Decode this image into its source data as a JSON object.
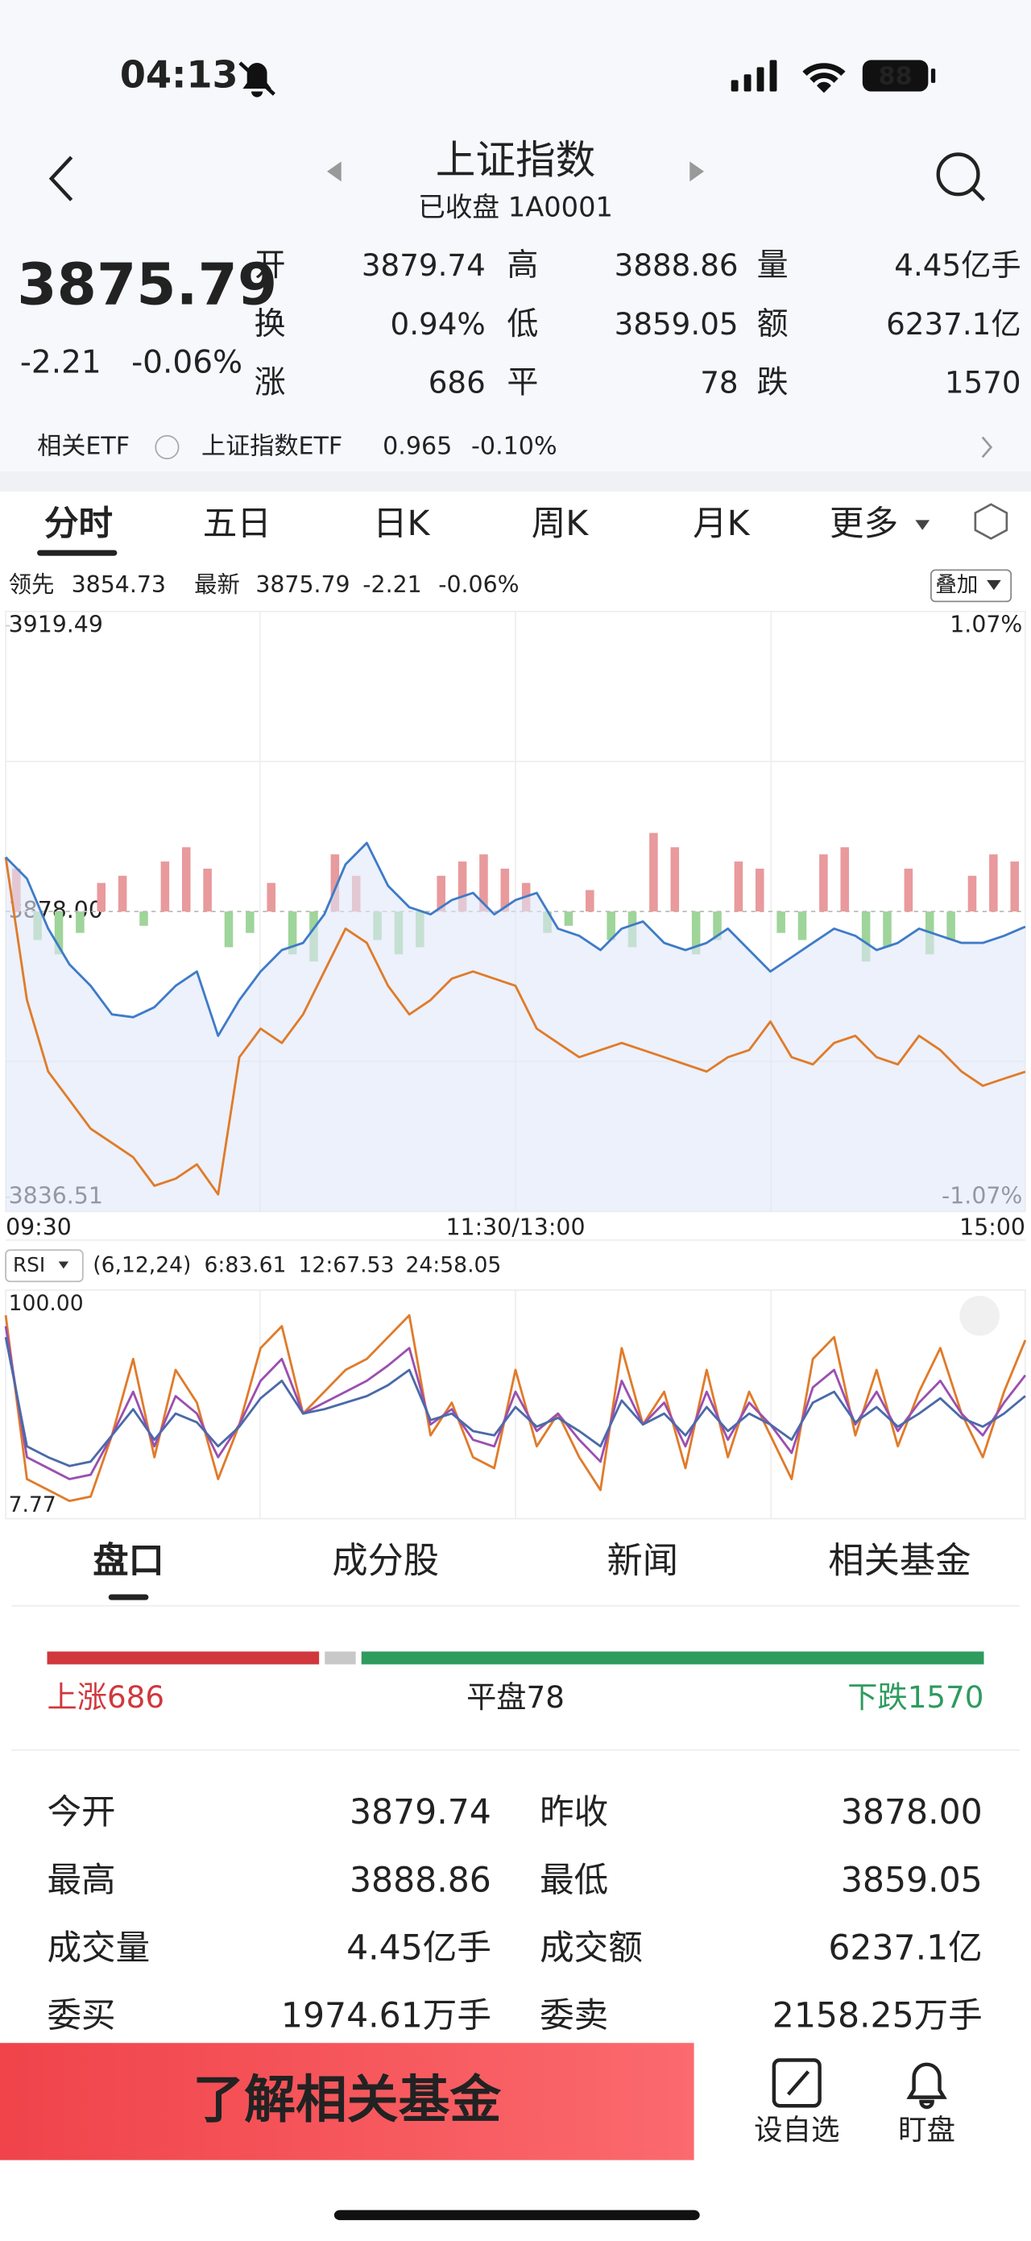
{
  "status": {
    "time": "04:13",
    "battery": "88"
  },
  "header": {
    "title": "上证指数",
    "subtitle": "已收盘 1A0001"
  },
  "quote": {
    "price": "3875.79",
    "change": "-2.21",
    "percent": "-0.06%",
    "stats": [
      {
        "label": "开",
        "value": "3879.74",
        "color": "#d0383d"
      },
      {
        "label": "高",
        "value": "3888.86",
        "color": "#d0383d"
      },
      {
        "label": "量",
        "value": "4.45亿手",
        "color": "#222222"
      },
      {
        "label": "换",
        "value": "0.94%",
        "color": "#222222"
      },
      {
        "label": "低",
        "value": "3859.05",
        "color": "#2e9b5f"
      },
      {
        "label": "额",
        "value": "6237.1亿",
        "color": "#222222"
      },
      {
        "label": "涨",
        "value": "686",
        "color": "#d0383d"
      },
      {
        "label": "平",
        "value": "78",
        "color": "#222222"
      },
      {
        "label": "跌",
        "value": "1570",
        "color": "#2e9b5f"
      }
    ]
  },
  "etf": {
    "label": "相关ETF",
    "name": "上证指数ETF",
    "price": "0.965",
    "change": "-0.10%"
  },
  "tabs": [
    "分时",
    "五日",
    "日K",
    "周K",
    "月K",
    "更多"
  ],
  "legend": {
    "lead_value": "3854.73",
    "latest_value": "3875.79",
    "change": "-2.21",
    "percent": "-0.06%",
    "overlay": "叠加"
  },
  "chart_data": [
    {
      "type": "line",
      "x": [
        0,
        5,
        10,
        15,
        20,
        25,
        30,
        35,
        40,
        45,
        50,
        55,
        60,
        65,
        70,
        75,
        80,
        85,
        90,
        95,
        100,
        105,
        110,
        115,
        120,
        125,
        130,
        135,
        140,
        145,
        150,
        155,
        160,
        165,
        170,
        175,
        180,
        185,
        190,
        195,
        200,
        205,
        210,
        215,
        220,
        225,
        230,
        235,
        240
      ],
      "xlim": [
        0,
        240
      ],
      "xticks": [
        {
          "value": 0,
          "label": "09:30"
        },
        {
          "value": 120,
          "label": "11:30/13:00"
        },
        {
          "value": 240,
          "label": "15:00"
        }
      ],
      "ylim": [
        3836.51,
        3919.49
      ],
      "yticks": [
        3919.49,
        {
          "value": 3878,
          "label": "3878.00"
        },
        3836.51
      ],
      "y2lim": [
        -1.07,
        1.07
      ],
      "y2ticks": [
        {
          "value": 1.07,
          "label": "1.07%"
        },
        {
          "value": -1.07,
          "label": "-1.07%"
        }
      ],
      "series": [
        {
          "name": "领先",
          "color": "#e07b2a",
          "values": [
            3885.88,
            3865.14,
            3854.76,
            3850.61,
            3846.46,
            3844.39,
            3842.32,
            3838.17,
            3839.2,
            3841.28,
            3836.92,
            3856.84,
            3860.99,
            3858.91,
            3863.06,
            3869.29,
            3875.51,
            3873.44,
            3867.21,
            3863.06,
            3865.14,
            3868.25,
            3869.29,
            3868.25,
            3867.21,
            3860.99,
            3858.91,
            3856.84,
            3857.88,
            3858.91,
            3857.88,
            3856.84,
            3855.8,
            3854.76,
            3856.84,
            3857.88,
            3862.02,
            3856.84,
            3855.8,
            3858.91,
            3859.95,
            3856.84,
            3855.8,
            3859.95,
            3857.88,
            3854.76,
            3852.69,
            3853.73,
            3854.73
          ]
        },
        {
          "name": "最新",
          "color": "#3f7bc8",
          "values": [
            3885.88,
            3882.77,
            3875.51,
            3870.32,
            3867.21,
            3863.06,
            3862.65,
            3864.1,
            3867.21,
            3869.29,
            3859.95,
            3865.14,
            3869.29,
            3872.4,
            3873.44,
            3877.59,
            3884.85,
            3887.96,
            3881.73,
            3878.62,
            3877.59,
            3879.66,
            3880.7,
            3877.59,
            3879.66,
            3880.7,
            3875.51,
            3874.47,
            3872.4,
            3875.51,
            3876.55,
            3873.44,
            3872.4,
            3873.44,
            3875.51,
            3872.4,
            3869.29,
            3871.36,
            3873.44,
            3875.51,
            3874.47,
            3872.4,
            3873.44,
            3875.51,
            3874.47,
            3873.44,
            3873.44,
            3874.47,
            3875.79
          ]
        }
      ],
      "volume": {
        "ylim": [
          -210,
          210
        ],
        "values": [
          30,
          -20,
          -30,
          -15,
          20,
          25,
          -10,
          35,
          45,
          30,
          -25,
          -15,
          20,
          -30,
          -35,
          40,
          25,
          -20,
          -30,
          -25,
          25,
          35,
          40,
          30,
          20,
          -15,
          -10,
          15,
          -20,
          -25,
          55,
          45,
          -30,
          -20,
          35,
          30,
          -15,
          -20,
          40,
          45,
          -35,
          -25,
          30,
          -30,
          -20,
          25,
          40,
          35
        ]
      }
    },
    {
      "type": "line",
      "indicator": "RSI",
      "params": "(6,12,24)",
      "xlim": [
        0,
        240
      ],
      "x": [
        0,
        5,
        10,
        15,
        20,
        25,
        30,
        35,
        40,
        45,
        50,
        55,
        60,
        65,
        70,
        75,
        80,
        85,
        90,
        95,
        100,
        105,
        110,
        115,
        120,
        125,
        130,
        135,
        140,
        145,
        150,
        155,
        160,
        165,
        170,
        175,
        180,
        185,
        190,
        195,
        200,
        205,
        210,
        215,
        220,
        225,
        230,
        235,
        240
      ],
      "ylim": [
        7.77,
        100
      ],
      "yticks": [
        {
          "value": 100,
          "label": "100.00"
        },
        7.77
      ],
      "series": [
        {
          "name": "6:83.61",
          "color": "#e07b2a",
          "values": [
            95,
            20,
            15,
            10,
            12,
            40,
            75,
            30,
            70,
            55,
            20,
            45,
            80,
            90,
            50,
            60,
            70,
            75,
            85,
            95,
            40,
            55,
            30,
            25,
            70,
            35,
            50,
            30,
            15,
            80,
            45,
            60,
            25,
            70,
            30,
            60,
            40,
            20,
            75,
            85,
            40,
            70,
            35,
            60,
            80,
            50,
            30,
            60,
            83.61
          ]
        },
        {
          "name": "12:67.53",
          "color": "#9b4fb0",
          "values": [
            90,
            30,
            25,
            20,
            22,
            40,
            60,
            35,
            58,
            50,
            30,
            45,
            65,
            75,
            50,
            55,
            60,
            65,
            72,
            80,
            45,
            52,
            38,
            35,
            60,
            42,
            50,
            38,
            28,
            65,
            45,
            55,
            35,
            60,
            38,
            55,
            45,
            32,
            62,
            70,
            45,
            60,
            42,
            55,
            65,
            50,
            40,
            55,
            67.53
          ]
        },
        {
          "name": "24:58.05",
          "color": "#4a6aa8",
          "values": [
            85,
            35,
            30,
            26,
            28,
            40,
            52,
            38,
            50,
            46,
            35,
            44,
            57,
            65,
            50,
            52,
            55,
            58,
            63,
            70,
            47,
            50,
            42,
            40,
            53,
            44,
            48,
            42,
            35,
            56,
            45,
            50,
            40,
            53,
            42,
            50,
            45,
            38,
            55,
            60,
            46,
            53,
            44,
            50,
            57,
            48,
            44,
            50,
            58.05
          ]
        }
      ]
    }
  ],
  "panel": {
    "tabs": [
      "盘口",
      "成分股",
      "新闻",
      "相关基金"
    ],
    "breadth": [
      {
        "label": "上涨",
        "value": 686,
        "color": "#d0383d"
      },
      {
        "label": "平盘",
        "value": 78,
        "color": "#c8c8c8"
      },
      {
        "label": "下跌",
        "value": 1570,
        "color": "#2e9b5f"
      }
    ],
    "rows": [
      [
        {
          "label": "今开",
          "value": "3879.74",
          "color": "#d0383d"
        },
        {
          "label": "昨收",
          "value": "3878.00",
          "color": "#222222"
        }
      ],
      [
        {
          "label": "最高",
          "value": "3888.86",
          "color": "#d0383d"
        },
        {
          "label": "最低",
          "value": "3859.05",
          "color": "#2e9b5f"
        }
      ],
      [
        {
          "label": "成交量",
          "value": "4.45亿手",
          "color": "#222222"
        },
        {
          "label": "成交额",
          "value": "6237.1亿",
          "color": "#222222"
        }
      ],
      [
        {
          "label": "委买",
          "value": "1974.61万手",
          "color": "#d0383d"
        },
        {
          "label": "委卖",
          "value": "2158.25万手",
          "color": "#2e9b5f"
        }
      ]
    ]
  },
  "footer": {
    "button": "了解相关基金",
    "actions": [
      "设自选",
      "盯盘"
    ]
  }
}
